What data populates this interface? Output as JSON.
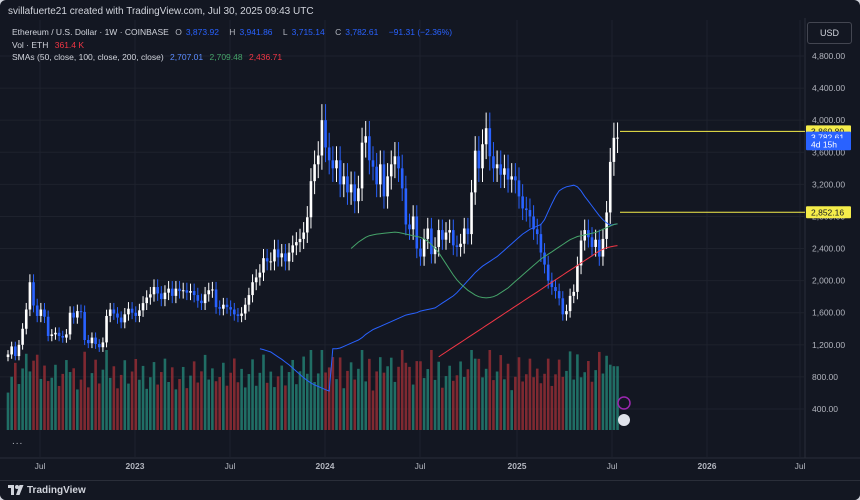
{
  "caption": "svillafuerte21 created with TradingView.com, Jul 30, 2025 09:43 UTC",
  "legend": {
    "symbol": "Ethereum / U.S. Dollar · 1W · COINBASE",
    "o_label": "O",
    "o_value": "3,873.92",
    "h_label": "H",
    "h_value": "3,941.86",
    "l_label": "L",
    "l_value": "3,715.14",
    "c_label": "C",
    "c_value": "3,782.61",
    "change": "−91.31 (−2.36%)",
    "vol_label": "Vol · ETH",
    "vol_value": "361.4 K",
    "sma_label": "SMAs (50, close, 100, close, 200, close)",
    "sma50_value": "2,707.01",
    "sma100_value": "2,709.48",
    "sma200_value": "2,436.71"
  },
  "currency": "USD",
  "brand": "TradingView",
  "more": "...",
  "colors": {
    "up": "#ffffff",
    "down": "#2962ff",
    "vol_up": "#22786d",
    "vol_down": "#8c2b33",
    "sma50": "#2962ff",
    "sma100": "#46a46a",
    "sma200": "#f23645",
    "hline": "#f5ed4a",
    "background": "#131722",
    "grid": "#1e222d"
  },
  "chart_data": {
    "type": "candlestick",
    "title": "Ethereum / U.S. Dollar · 1W · COINBASE",
    "ylim": [
      0,
      5200
    ],
    "y_ticks": [
      "4,800.00",
      "4,400.00",
      "4,000.00",
      "3,600.00",
      "3,200.00",
      "2,800.00",
      "2,400.00",
      "2,000.00",
      "1,600.00",
      "1,200.00",
      "800.00",
      "400.00"
    ],
    "y_tick_values": [
      4800,
      4400,
      4000,
      3600,
      3200,
      2800,
      2400,
      2000,
      1600,
      1200,
      800,
      400
    ],
    "x_ticks": [
      "Jul",
      "2023",
      "Jul",
      "2024",
      "Jul",
      "2025",
      "Jul",
      "2026",
      "Jul"
    ],
    "x_tick_bold": [
      false,
      true,
      false,
      true,
      false,
      true,
      false,
      true,
      false
    ],
    "price_labels": [
      {
        "text": "3,860.80",
        "value": 3860.8,
        "kind": "hline"
      },
      {
        "text": "3,782.61",
        "value": 3782.61,
        "kind": "last"
      },
      {
        "text": "4d 15h",
        "value": 3700,
        "kind": "countdown"
      },
      {
        "text": "2,852.16",
        "value": 2852.16,
        "kind": "hline"
      }
    ],
    "horizontal_lines": [
      3860.8,
      2852.16
    ],
    "weeks_start": "2022-06-27",
    "closes": [
      1080,
      1180,
      1060,
      1200,
      1400,
      1640,
      1980,
      1690,
      1560,
      1640,
      1550,
      1310,
      1330,
      1350,
      1310,
      1290,
      1330,
      1600,
      1540,
      1620,
      1610,
      1260,
      1220,
      1290,
      1210,
      1170,
      1230,
      1560,
      1640,
      1590,
      1540,
      1480,
      1580,
      1650,
      1600,
      1560,
      1630,
      1720,
      1790,
      1830,
      1920,
      1840,
      1770,
      1850,
      1900,
      1810,
      1900,
      1870,
      1880,
      1850,
      1870,
      1820,
      1750,
      1720,
      1830,
      1880,
      1890,
      1670,
      1650,
      1700,
      1670,
      1640,
      1580,
      1560,
      1590,
      1700,
      1820,
      1980,
      2040,
      2100,
      2280,
      2240,
      2240,
      2390,
      2290,
      2340,
      2240,
      2350,
      2440,
      2480,
      2520,
      2600,
      2790,
      3240,
      3450,
      3560,
      4000,
      3660,
      3500,
      3400,
      3500,
      3200,
      3300,
      3100,
      3200,
      2990,
      3150,
      3720,
      3800,
      3500,
      3420,
      3200,
      3450,
      3050,
      3300,
      3450,
      3550,
      3400,
      3150,
      2700,
      2640,
      2800,
      2400,
      2300,
      2520,
      2650,
      2330,
      2420,
      2630,
      2510,
      2600,
      2630,
      2440,
      2420,
      2460,
      2650,
      2580,
      3100,
      3620,
      3400,
      3700,
      3900,
      3550,
      3400,
      3450,
      3320,
      3400,
      3260,
      3300,
      3250,
      3050,
      2900,
      2880,
      2800,
      2640,
      2580,
      2350,
      2200,
      2000,
      1920,
      1870,
      1780,
      1580,
      1620,
      1810,
      1860,
      2190,
      2500,
      2630,
      2540,
      2420,
      2510,
      2300,
      2520,
      2850,
      3480,
      3780,
      3782.61
    ],
    "sma50": [
      1150,
      1140,
      1125,
      1110,
      1080,
      1050,
      1020,
      985,
      950,
      910,
      870,
      830,
      790,
      755,
      725,
      700,
      680,
      660,
      640,
      623,
      1150,
      1150,
      1160,
      1180,
      1200,
      1220,
      1240,
      1260,
      1290,
      1330,
      1360,
      1390,
      1410,
      1430,
      1450,
      1470,
      1490,
      1510,
      1530,
      1550,
      1570,
      1580,
      1590,
      1600,
      1620,
      1630,
      1640,
      1650,
      1660,
      1690,
      1720,
      1750,
      1780,
      1810,
      1850,
      1900,
      1950,
      2000,
      2050,
      2100,
      2140,
      2180,
      2210,
      2240,
      2270,
      2300,
      2340,
      2380,
      2420,
      2460,
      2500,
      2540,
      2580,
      2610,
      2640,
      2660,
      2680,
      2700,
      2760,
      2860,
      2960,
      3050,
      3120,
      3150,
      3170,
      3180,
      3190,
      3170,
      3120,
      3050,
      2990,
      2930,
      2870,
      2810,
      2760,
      2720,
      2690,
      2700,
      2707.01
    ],
    "sma100": [
      null,
      null,
      null,
      null,
      null,
      null,
      null,
      null,
      null,
      null,
      null,
      null,
      null,
      null,
      null,
      null,
      null,
      null,
      null,
      null,
      2400,
      2440,
      2480,
      2510,
      2540,
      2560,
      2570,
      2580,
      2585,
      2590,
      2595,
      2600,
      2605,
      2600,
      2590,
      2580,
      2570,
      2560,
      2550,
      2540,
      2520,
      2490,
      2450,
      2400,
      2350,
      2280,
      2210,
      2140,
      2070,
      2010,
      1960,
      1920,
      1880,
      1850,
      1820,
      1800,
      1790,
      1785,
      1790,
      1800,
      1820,
      1850,
      1880,
      1910,
      1950,
      1990,
      2030,
      2070,
      2110,
      2150,
      2190,
      2230,
      2270,
      2300,
      2330,
      2360,
      2390,
      2420,
      2450,
      2480,
      2510,
      2530,
      2550,
      2560,
      2570,
      2580,
      2590,
      2600,
      2620,
      2640,
      2660,
      2680,
      2700,
      2709.48
    ],
    "sma200": [
      null,
      null,
      null,
      null,
      null,
      null,
      null,
      null,
      null,
      null,
      null,
      null,
      null,
      null,
      null,
      null,
      null,
      null,
      null,
      null,
      1050,
      1080,
      1110,
      1140,
      1170,
      1200,
      1230,
      1260,
      1290,
      1320,
      1350,
      1380,
      1410,
      1440,
      1470,
      1500,
      1530,
      1560,
      1590,
      1620,
      1650,
      1680,
      1710,
      1740,
      1770,
      1800,
      1830,
      1860,
      1890,
      1920,
      1950,
      1980,
      2010,
      2040,
      2070,
      2100,
      2130,
      2160,
      2190,
      2220,
      2250,
      2280,
      2310,
      2340,
      2370,
      2390,
      2410,
      2420,
      2430,
      2436.71
    ],
    "volume_scale_max": 1000,
    "volumes_note": "Weekly ETH volume in thousands (K), bar height in price-axis units below 1000"
  }
}
